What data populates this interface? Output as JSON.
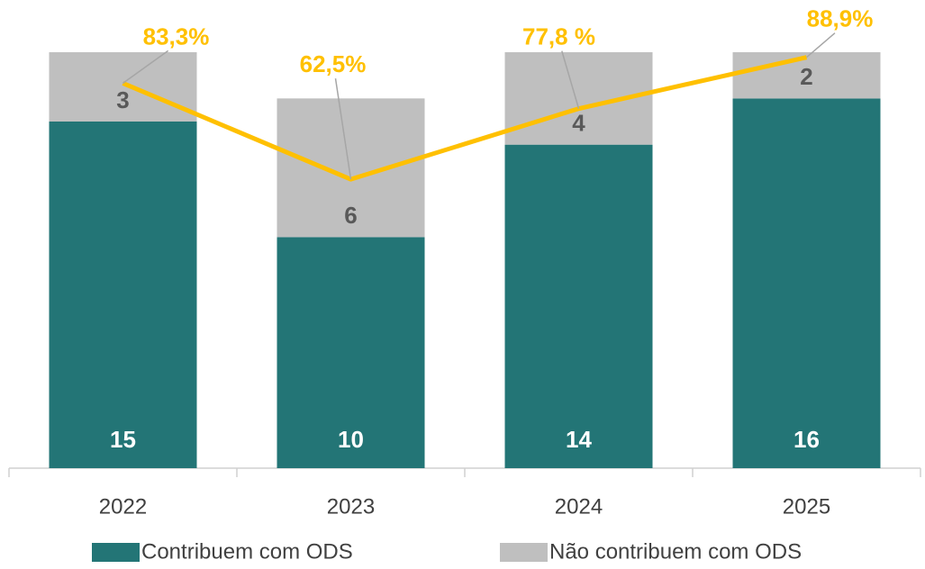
{
  "chart_data": {
    "type": "stacked-bar-line",
    "categories": [
      "2022",
      "2023",
      "2024",
      "2025"
    ],
    "series": [
      {
        "name": "Contribuem com ODS",
        "color": "#237576",
        "values": [
          15,
          10,
          14,
          16
        ]
      },
      {
        "name": "Não contribuem com ODS",
        "color": "#bfbfbf",
        "values": [
          3,
          6,
          4,
          2
        ]
      },
      {
        "type": "line",
        "color": "#ffc000",
        "axis": "y2",
        "values": [
          83.3,
          62.5,
          77.8,
          88.9
        ],
        "value_labels": [
          "83,3%",
          "62,5%",
          "77,8 %",
          "88,9%"
        ]
      }
    ],
    "ylim": [
      0,
      18
    ],
    "y2lim": [
      0,
      90
    ],
    "grid": false
  }
}
